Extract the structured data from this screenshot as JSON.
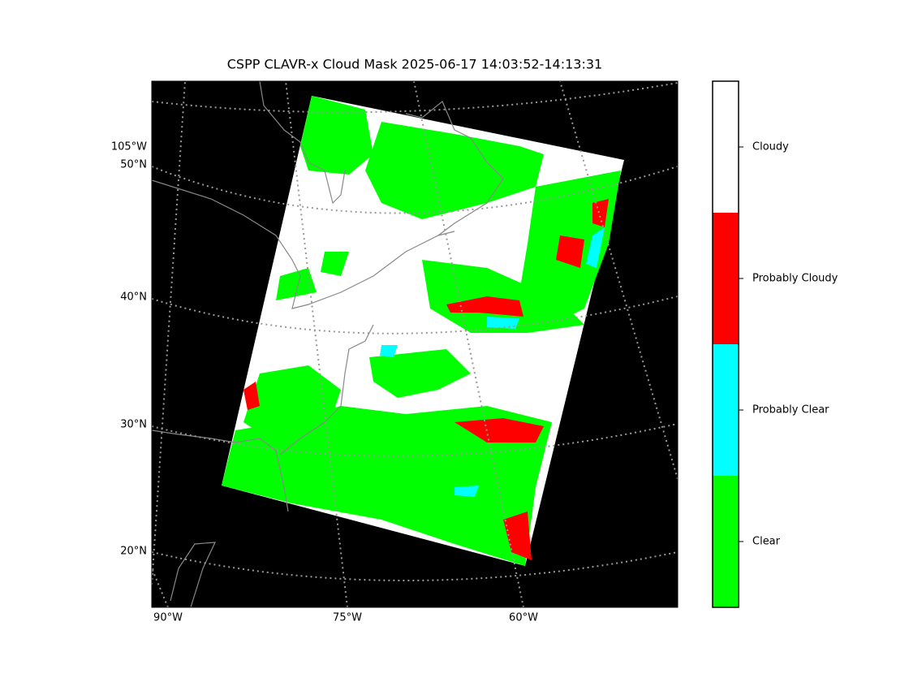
{
  "title": "CSPP CLAVR-x Cloud Mask 2025-06-17 14:03:52-14:13:31",
  "lat_labels": [
    "105°W",
    "50°N",
    "40°N",
    "30°N",
    "20°N"
  ],
  "lon_labels": [
    "90°W",
    "75°W",
    "60°W"
  ],
  "colorbar": [
    {
      "label": "Clear",
      "color": "#00ff00"
    },
    {
      "label": "Probably Clear",
      "color": "#00ffff"
    },
    {
      "label": "Probably Cloudy",
      "color": "#ff0000"
    },
    {
      "label": "Cloudy",
      "color": "#ffffff"
    }
  ]
}
